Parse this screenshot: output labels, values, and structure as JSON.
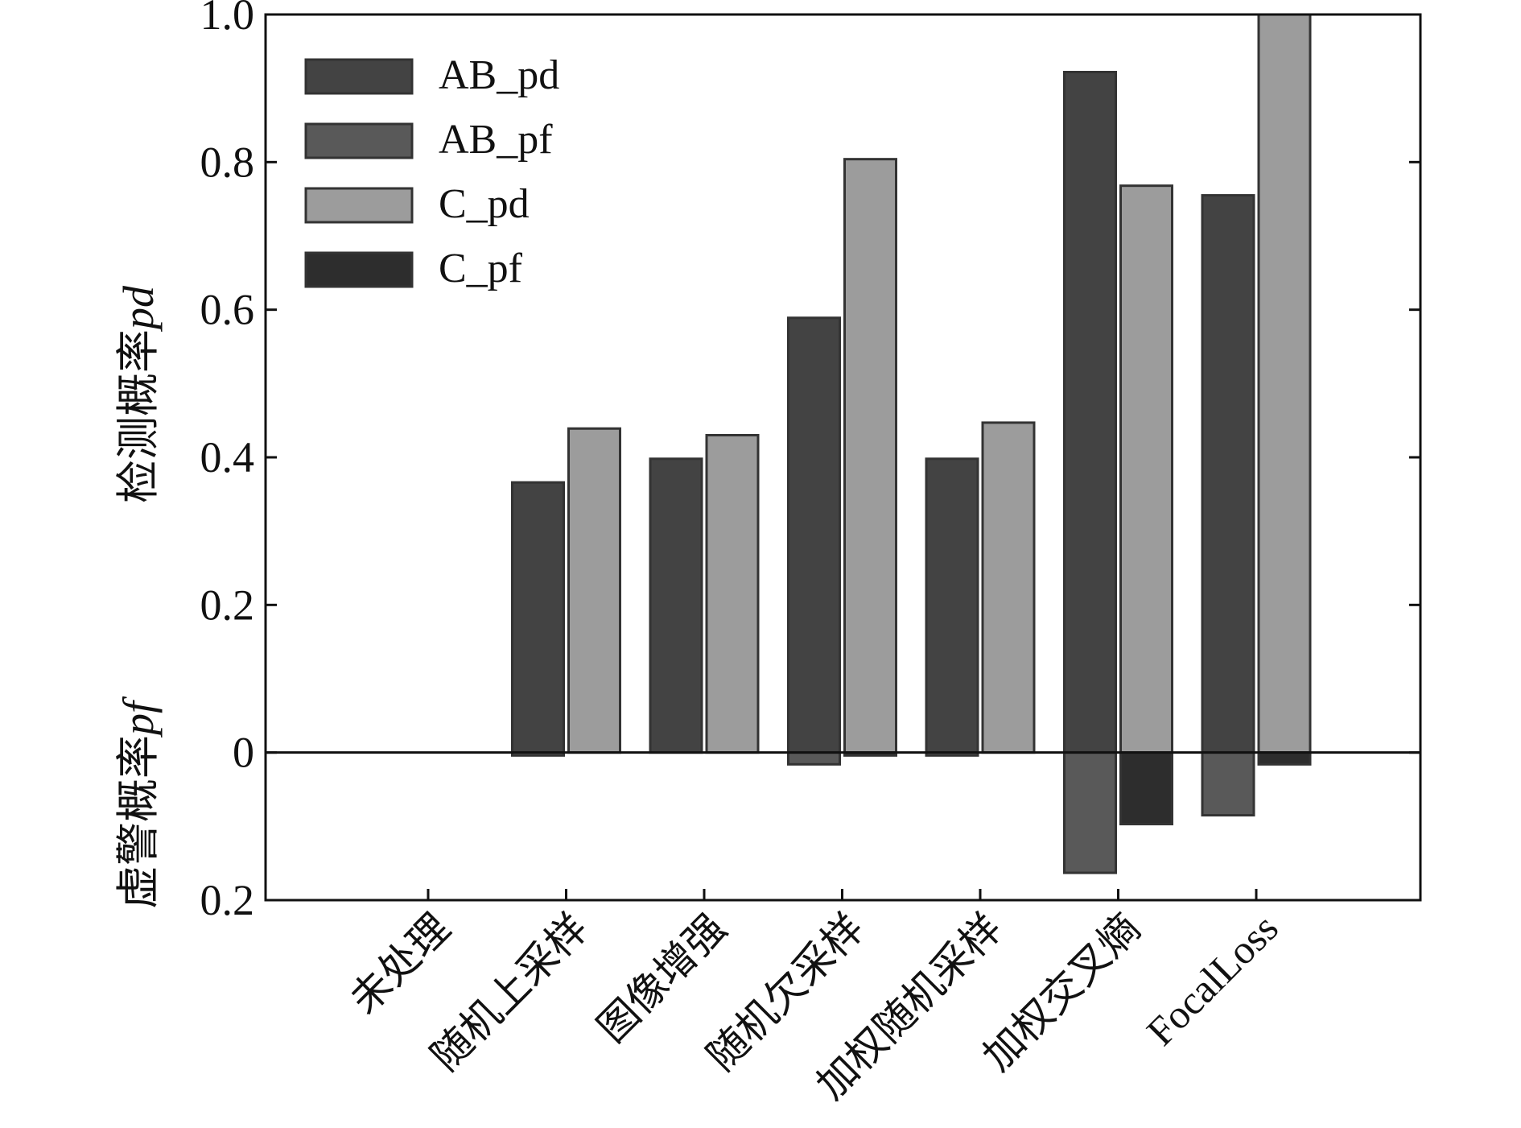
{
  "chart_data": {
    "type": "bar",
    "categories": [
      "未处理",
      "随机上采样",
      "图像增强",
      "随机欠采样",
      "加权随机采样",
      "加权交叉熵",
      "FocalLoss"
    ],
    "series": [
      {
        "name": "AB_pd",
        "direction": "up",
        "color": "#434343",
        "values": [
          0,
          0.366,
          0.398,
          0.589,
          0.398,
          0.922,
          0.755
        ]
      },
      {
        "name": "AB_pf",
        "direction": "down",
        "color": "#595959",
        "values": [
          0,
          0.004,
          0.0,
          0.016,
          0.004,
          0.163,
          0.085
        ]
      },
      {
        "name": "C_pd",
        "direction": "up",
        "color": "#9c9c9c",
        "values": [
          0,
          0.439,
          0.43,
          0.804,
          0.447,
          0.768,
          1.0
        ]
      },
      {
        "name": "C_pf",
        "direction": "down",
        "color": "#2d2d2d",
        "values": [
          0,
          0.0,
          0.0,
          0.004,
          0.0,
          0.097,
          0.016
        ]
      }
    ],
    "y_axis": {
      "range": [
        -0.2,
        1.0
      ],
      "ticks": [
        -0.2,
        0,
        0.2,
        0.4,
        0.6,
        0.8,
        1.0
      ],
      "tick_labels": [
        "0.2",
        "0",
        "0.2",
        "0.4",
        "0.6",
        "0.8",
        "1.0"
      ]
    },
    "ylabel_top": {
      "text": "检测概率",
      "var": "pd"
    },
    "ylabel_bottom": {
      "text": "虚警概率",
      "var": "pf"
    },
    "legend": {
      "position": "top-left",
      "entries": [
        "AB_pd",
        "AB_pf",
        "C_pd",
        "C_pf"
      ]
    },
    "grid": false
  }
}
